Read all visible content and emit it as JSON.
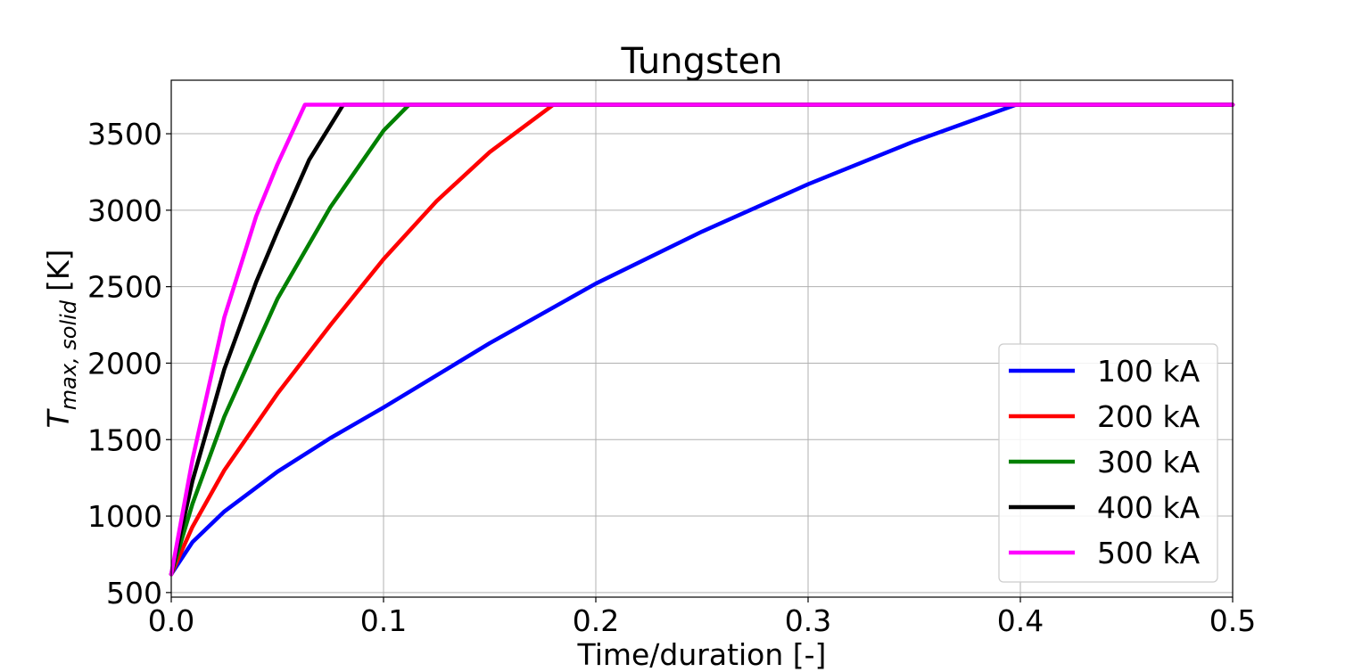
{
  "chart_data": {
    "type": "line",
    "title": "Tungsten",
    "xlabel": "Time/duration [-]",
    "ylabel": {
      "main": "T",
      "subscript": "max, solid",
      "unit": "[K]"
    },
    "xlim": [
      0,
      0.5
    ],
    "ylim": [
      470,
      3850
    ],
    "xticks": [
      0.0,
      0.1,
      0.2,
      0.3,
      0.4,
      0.5
    ],
    "xtick_labels": [
      "0.0",
      "0.1",
      "0.2",
      "0.3",
      "0.4",
      "0.5"
    ],
    "yticks": [
      500,
      1000,
      1500,
      2000,
      2500,
      3000,
      3500
    ],
    "ytick_labels": [
      "500",
      "1000",
      "1500",
      "2000",
      "2500",
      "3000",
      "3500"
    ],
    "grid": true,
    "legend_position": "lower-right",
    "series": [
      {
        "name": "100 kA",
        "color": "#0000ff",
        "x": [
          0.0,
          0.01,
          0.025,
          0.05,
          0.075,
          0.1,
          0.15,
          0.2,
          0.25,
          0.3,
          0.35,
          0.398,
          0.5
        ],
        "y": [
          620,
          830,
          1030,
          1290,
          1510,
          1710,
          2130,
          2520,
          2860,
          3170,
          3450,
          3690,
          3690
        ]
      },
      {
        "name": "200 kA",
        "color": "#ff0000",
        "x": [
          0.0,
          0.01,
          0.025,
          0.05,
          0.075,
          0.1,
          0.125,
          0.15,
          0.18,
          0.5
        ],
        "y": [
          620,
          930,
          1300,
          1800,
          2250,
          2680,
          3060,
          3380,
          3690,
          3690
        ]
      },
      {
        "name": "300 kA",
        "color": "#008000",
        "x": [
          0.0,
          0.01,
          0.025,
          0.05,
          0.075,
          0.1,
          0.112,
          0.5
        ],
        "y": [
          620,
          1080,
          1650,
          2420,
          3020,
          3520,
          3690,
          3690
        ]
      },
      {
        "name": "400 kA",
        "color": "#000000",
        "x": [
          0.0,
          0.01,
          0.025,
          0.04,
          0.05,
          0.065,
          0.081,
          0.5
        ],
        "y": [
          620,
          1230,
          1960,
          2530,
          2860,
          3330,
          3690,
          3690
        ]
      },
      {
        "name": "500 kA",
        "color": "#ff00ff",
        "x": [
          0.0,
          0.01,
          0.025,
          0.04,
          0.05,
          0.063,
          0.5
        ],
        "y": [
          620,
          1370,
          2300,
          2960,
          3300,
          3690,
          3690
        ]
      }
    ]
  }
}
